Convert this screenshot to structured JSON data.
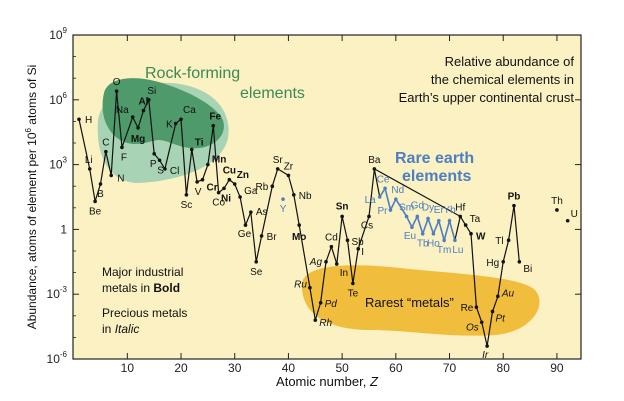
{
  "chart_data": {
    "type": "line",
    "title_lines": [
      "Relative abundance of",
      "the chemical elements in",
      "Earth’s upper continental crust"
    ],
    "xlabel_text": "Atomic number, ",
    "xlabel_var": "Z",
    "ylabel_pre": "Abundance, atoms of element per 10",
    "ylabel_sup": "6",
    "ylabel_post": " atoms of Si",
    "xlim": [
      0,
      95
    ],
    "ylim_exp": [
      -6,
      9
    ],
    "x_ticks": [
      10,
      20,
      30,
      40,
      50,
      60,
      70,
      80,
      90
    ],
    "y_ticks": [
      {
        "exp": 9,
        "base": "10",
        "sup": "9"
      },
      {
        "exp": 6,
        "base": "10",
        "sup": "6"
      },
      {
        "exp": 3,
        "base": "10",
        "sup": "3"
      },
      {
        "exp": 0,
        "base": "1",
        "sup": ""
      },
      {
        "exp": -3,
        "base": "10",
        "sup": "-3"
      },
      {
        "exp": -6,
        "base": "10",
        "sup": "-6"
      }
    ],
    "region_labels": {
      "rock_forming": [
        "Rock-forming",
        "elements"
      ],
      "rare_earth": [
        "Rare earth",
        "elements"
      ],
      "rarest": "Rarest “metals”"
    },
    "notes": {
      "major_line1": "Major industrial",
      "major_line2_pre": "metals in ",
      "major_line2_bold": "Bold",
      "precious_line1": "Precious metals",
      "precious_line2_pre": "in ",
      "precious_line2_italic": "Italic"
    },
    "colors": {
      "background": "#fbf1c2",
      "rock_light": "#a8d3b5",
      "rock_dark": "#4f9a6a",
      "rock_label": "#3a8a56",
      "rare_earth": "#4d7fc4",
      "rarest": "#f1bd3c",
      "line": "#111111"
    },
    "main_series": [
      {
        "z": 1,
        "sym": "H",
        "log": 5.1
      },
      {
        "z": 3,
        "sym": "Li",
        "log": 2.8
      },
      {
        "z": 4,
        "sym": "Be",
        "log": 1.3
      },
      {
        "z": 5,
        "sym": "B",
        "log": 2.1
      },
      {
        "z": 6,
        "sym": "C",
        "log": 3.6
      },
      {
        "z": 7,
        "sym": "N",
        "log": 2.5
      },
      {
        "z": 8,
        "sym": "O",
        "log": 6.4
      },
      {
        "z": 9,
        "sym": "F",
        "log": 3.8
      },
      {
        "z": 11,
        "sym": "Na",
        "log": 5.2
      },
      {
        "z": 12,
        "sym": "Mg",
        "log": 4.7
      },
      {
        "z": 13,
        "sym": "Al",
        "log": 5.5
      },
      {
        "z": 14,
        "sym": "Si",
        "log": 6.0
      },
      {
        "z": 15,
        "sym": "P",
        "log": 3.5
      },
      {
        "z": 16,
        "sym": "S",
        "log": 3.2
      },
      {
        "z": 17,
        "sym": "Cl",
        "log": 2.8
      },
      {
        "z": 19,
        "sym": "K",
        "log": 4.9
      },
      {
        "z": 20,
        "sym": "Ca",
        "log": 5.1
      },
      {
        "z": 21,
        "sym": "Sc",
        "log": 1.6
      },
      {
        "z": 22,
        "sym": "Ti",
        "log": 3.7
      },
      {
        "z": 23,
        "sym": "V",
        "log": 2.2
      },
      {
        "z": 24,
        "sym": "Cr",
        "log": 2.3
      },
      {
        "z": 25,
        "sym": "Mn",
        "log": 3.0
      },
      {
        "z": 26,
        "sym": "Fe",
        "log": 4.8
      },
      {
        "z": 27,
        "sym": "Co",
        "log": 1.7
      },
      {
        "z": 28,
        "sym": "Ni",
        "log": 1.9
      },
      {
        "z": 29,
        "sym": "Cu",
        "log": 2.3
      },
      {
        "z": 30,
        "sym": "Zn",
        "log": 2.1
      },
      {
        "z": 31,
        "sym": "Ga",
        "log": 1.5
      },
      {
        "z": 32,
        "sym": "Ge",
        "log": 0.2
      },
      {
        "z": 33,
        "sym": "As",
        "log": 0.8
      },
      {
        "z": 34,
        "sym": "Se",
        "log": -1.5
      },
      {
        "z": 35,
        "sym": "Br",
        "log": -0.3
      },
      {
        "z": 37,
        "sym": "Rb",
        "log": 2.0
      },
      {
        "z": 38,
        "sym": "Sr",
        "log": 2.8
      },
      {
        "z": 40,
        "sym": "Zr",
        "log": 2.5
      },
      {
        "z": 41,
        "sym": "Nb",
        "log": 1.6
      },
      {
        "z": 42,
        "sym": "Mo",
        "log": 0.2
      },
      {
        "z": 44,
        "sym": "Ru",
        "log": -2.7
      },
      {
        "z": 45,
        "sym": "Rh",
        "log": -4.2
      },
      {
        "z": 46,
        "sym": "Pd",
        "log": -3.4
      },
      {
        "z": 47,
        "sym": "Ag",
        "log": -1.5
      },
      {
        "z": 48,
        "sym": "Cd",
        "log": -0.8
      },
      {
        "z": 49,
        "sym": "In",
        "log": -1.6
      },
      {
        "z": 50,
        "sym": "Sn",
        "log": 0.6
      },
      {
        "z": 51,
        "sym": "Sb",
        "log": -0.5
      },
      {
        "z": 52,
        "sym": "Te",
        "log": -2.5
      },
      {
        "z": 53,
        "sym": "I",
        "log": -0.9
      },
      {
        "z": 55,
        "sym": "Cs",
        "log": 0.6
      },
      {
        "z": 56,
        "sym": "Ba",
        "log": 2.8
      },
      {
        "z": 72,
        "sym": "Hf",
        "log": 0.6
      },
      {
        "z": 73,
        "sym": "Ta",
        "log": 0.2
      },
      {
        "z": 74,
        "sym": "W",
        "log": -0.2
      },
      {
        "z": 75,
        "sym": "Re",
        "log": -3.6
      },
      {
        "z": 76,
        "sym": "Os",
        "log": -4.3
      },
      {
        "z": 77,
        "sym": "Ir",
        "log": -5.4
      },
      {
        "z": 78,
        "sym": "Pt",
        "log": -3.8
      },
      {
        "z": 79,
        "sym": "Au",
        "log": -3.1
      },
      {
        "z": 80,
        "sym": "Hg",
        "log": -1.5
      },
      {
        "z": 81,
        "sym": "Tl",
        "log": -0.5
      },
      {
        "z": 82,
        "sym": "Pb",
        "log": 1.1
      },
      {
        "z": 83,
        "sym": "Bi",
        "log": -1.5
      }
    ],
    "ree_series": [
      {
        "z": 57,
        "sym": "La",
        "log": 1.5
      },
      {
        "z": 58,
        "sym": "Ce",
        "log": 1.9
      },
      {
        "z": 59,
        "sym": "Pr",
        "log": 0.9
      },
      {
        "z": 60,
        "sym": "Nd",
        "log": 1.4
      },
      {
        "z": 62,
        "sym": "Sm",
        "log": 0.6
      },
      {
        "z": 63,
        "sym": "Eu",
        "log": 0.1
      },
      {
        "z": 64,
        "sym": "Gd",
        "log": 0.6
      },
      {
        "z": 65,
        "sym": "Tb",
        "log": -0.2
      },
      {
        "z": 66,
        "sym": "Dy",
        "log": 0.5
      },
      {
        "z": 67,
        "sym": "Ho",
        "log": -0.2
      },
      {
        "z": 68,
        "sym": "Er",
        "log": 0.4
      },
      {
        "z": 69,
        "sym": "Tm",
        "log": -0.5
      },
      {
        "z": 70,
        "sym": "Yb",
        "log": 0.4
      },
      {
        "z": 71,
        "sym": "Lu",
        "log": -0.5
      }
    ],
    "other_points": [
      {
        "z": 39,
        "sym": "Y",
        "log": 1.4,
        "color": "#4d7fc4"
      },
      {
        "z": 90,
        "sym": "Th",
        "log": 0.9,
        "color": "#111111"
      },
      {
        "z": 92,
        "sym": "U",
        "log": 0.4,
        "color": "#111111"
      }
    ],
    "bold_symbols": [
      "Al",
      "Mg",
      "Ti",
      "Mn",
      "Fe",
      "Cr",
      "Cu",
      "Zn",
      "Ni",
      "Mo",
      "Sn",
      "W",
      "Pb"
    ],
    "italic_symbols": [
      "Ru",
      "Rh",
      "Pd",
      "Ag",
      "Os",
      "Ir",
      "Pt",
      "Au"
    ]
  }
}
